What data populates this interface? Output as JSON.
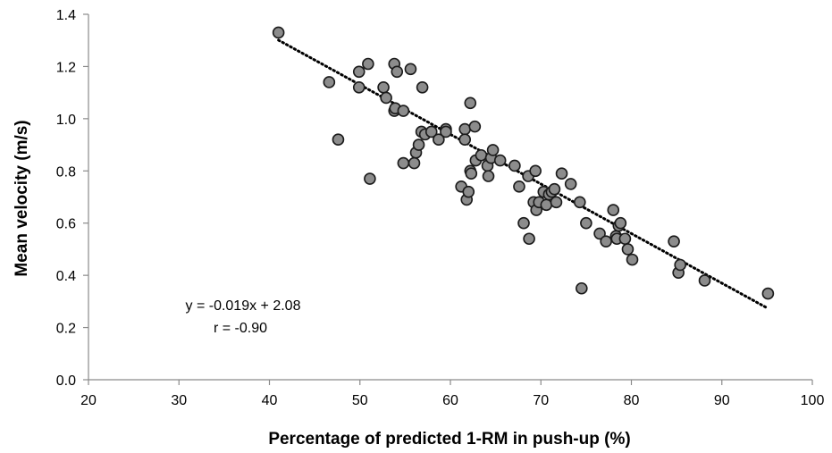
{
  "chart_data": {
    "type": "scatter",
    "title": "",
    "xlabel": "Percentage of predicted 1-RM in push-up (%)",
    "ylabel": "Mean velocity (m/s)",
    "xlim": [
      20,
      100
    ],
    "ylim": [
      0.0,
      1.4
    ],
    "xticks": [
      "20",
      "30",
      "40",
      "50",
      "60",
      "70",
      "80",
      "90",
      "100"
    ],
    "yticks": [
      "0.0",
      "0.2",
      "0.4",
      "0.6",
      "0.8",
      "1.0",
      "1.2",
      "1.4"
    ],
    "grid": false,
    "legend": "none",
    "marker_color": "#8c8c8c",
    "marker_edge_color": "#1a1a1a",
    "trendline": {
      "slope": -0.019,
      "intercept": 2.08,
      "x_range": [
        41,
        95
      ],
      "style": "dotted"
    },
    "annotations": [
      "y = -0.019x + 2.08",
      "r = -0.90"
    ],
    "points": [
      [
        41.0,
        1.33
      ],
      [
        46.6,
        1.14
      ],
      [
        47.6,
        0.92
      ],
      [
        49.9,
        1.18
      ],
      [
        49.9,
        1.12
      ],
      [
        50.9,
        1.21
      ],
      [
        51.1,
        0.77
      ],
      [
        52.6,
        1.12
      ],
      [
        52.9,
        1.08
      ],
      [
        53.8,
        1.21
      ],
      [
        54.1,
        1.18
      ],
      [
        53.8,
        1.03
      ],
      [
        53.9,
        1.04
      ],
      [
        54.8,
        1.03
      ],
      [
        54.8,
        0.83
      ],
      [
        55.6,
        1.19
      ],
      [
        56.9,
        1.12
      ],
      [
        56.0,
        0.83
      ],
      [
        56.2,
        0.87
      ],
      [
        56.5,
        0.9
      ],
      [
        56.8,
        0.95
      ],
      [
        57.2,
        0.94
      ],
      [
        57.9,
        0.95
      ],
      [
        58.7,
        0.92
      ],
      [
        59.5,
        0.96
      ],
      [
        59.5,
        0.95
      ],
      [
        61.2,
        0.74
      ],
      [
        61.6,
        0.96
      ],
      [
        61.6,
        0.92
      ],
      [
        61.8,
        0.69
      ],
      [
        62.0,
        0.72
      ],
      [
        62.2,
        1.06
      ],
      [
        62.2,
        0.8
      ],
      [
        62.3,
        0.79
      ],
      [
        62.7,
        0.97
      ],
      [
        62.8,
        0.84
      ],
      [
        63.4,
        0.86
      ],
      [
        64.1,
        0.82
      ],
      [
        64.2,
        0.78
      ],
      [
        64.5,
        0.85
      ],
      [
        64.7,
        0.88
      ],
      [
        65.5,
        0.84
      ],
      [
        67.1,
        0.82
      ],
      [
        67.6,
        0.74
      ],
      [
        68.1,
        0.6
      ],
      [
        68.6,
        0.78
      ],
      [
        68.7,
        0.54
      ],
      [
        69.2,
        0.68
      ],
      [
        69.4,
        0.8
      ],
      [
        69.5,
        0.65
      ],
      [
        69.8,
        0.68
      ],
      [
        70.3,
        0.72
      ],
      [
        70.6,
        0.67
      ],
      [
        70.9,
        0.71
      ],
      [
        71.2,
        0.72
      ],
      [
        71.5,
        0.73
      ],
      [
        71.7,
        0.68
      ],
      [
        72.3,
        0.79
      ],
      [
        73.3,
        0.75
      ],
      [
        74.3,
        0.68
      ],
      [
        74.5,
        0.35
      ],
      [
        75.0,
        0.6
      ],
      [
        76.5,
        0.56
      ],
      [
        77.2,
        0.53
      ],
      [
        78.0,
        0.65
      ],
      [
        78.3,
        0.55
      ],
      [
        78.4,
        0.54
      ],
      [
        78.6,
        0.59
      ],
      [
        78.8,
        0.6
      ],
      [
        79.3,
        0.54
      ],
      [
        79.6,
        0.5
      ],
      [
        80.1,
        0.46
      ],
      [
        84.7,
        0.53
      ],
      [
        85.2,
        0.41
      ],
      [
        85.4,
        0.44
      ],
      [
        88.1,
        0.38
      ],
      [
        95.1,
        0.33
      ]
    ]
  }
}
